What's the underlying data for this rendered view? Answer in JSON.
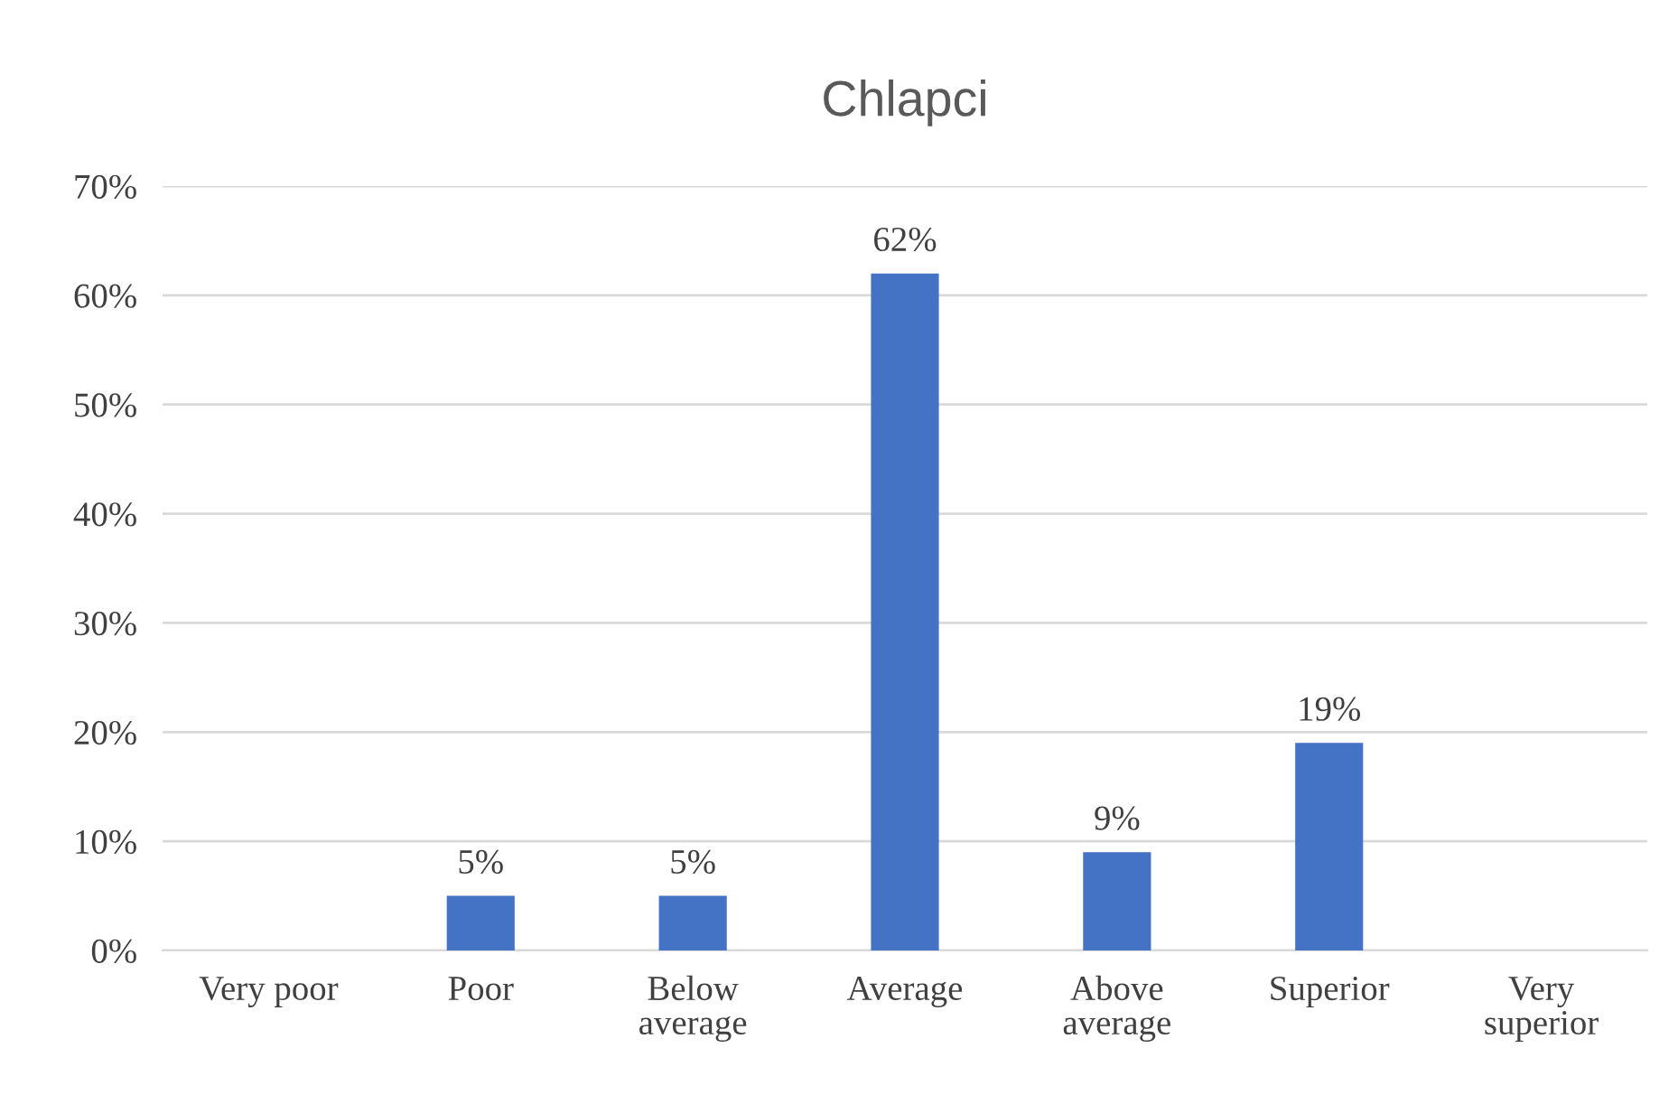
{
  "chart_data": {
    "type": "bar",
    "title": "Chlapci",
    "categories": [
      "Very poor",
      "Poor",
      "Below\naverage",
      "Average",
      "Above\naverage",
      "Superior",
      "Very\nsuperior"
    ],
    "values": [
      0,
      5,
      5,
      62,
      9,
      19,
      0
    ],
    "value_labels": [
      null,
      "5%",
      "5%",
      "62%",
      "9%",
      "19%",
      null
    ],
    "color": "#4472c4",
    "ylim": [
      0,
      70
    ],
    "yticks": [
      {
        "value": 0,
        "label": "0%"
      },
      {
        "value": 10,
        "label": "10%"
      },
      {
        "value": 20,
        "label": "20%"
      },
      {
        "value": 30,
        "label": "30%"
      },
      {
        "value": 40,
        "label": "40%"
      },
      {
        "value": 50,
        "label": "50%"
      },
      {
        "value": 60,
        "label": "60%"
      },
      {
        "value": 70,
        "label": "70%"
      }
    ],
    "grid": "y",
    "legend": false
  }
}
